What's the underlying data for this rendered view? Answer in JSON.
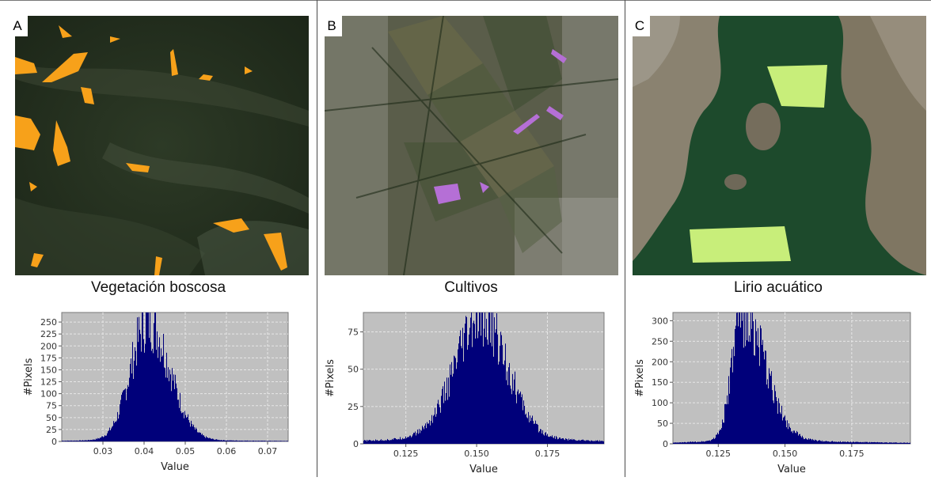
{
  "panels": [
    {
      "letter": "A",
      "caption": "Vegetación boscosa",
      "polygon_color": "#f7a11a"
    },
    {
      "letter": "B",
      "caption": "Cultivos",
      "polygon_color": "#b56fd6"
    },
    {
      "letter": "C",
      "caption": "Lirio acuático",
      "polygon_color": "#c8ee7a"
    }
  ],
  "chart_data": [
    {
      "type": "histogram",
      "xlabel": "Value",
      "ylabel": "#Pixels",
      "xlim": [
        0.02,
        0.075
      ],
      "ylim": [
        0,
        270
      ],
      "xticks": [
        0.03,
        0.04,
        0.05,
        0.06,
        0.07
      ],
      "xtick_labels": [
        "0.03",
        "0.04",
        "0.05",
        "0.06",
        "0.07"
      ],
      "yticks": [
        0,
        25,
        50,
        75,
        100,
        125,
        150,
        175,
        200,
        225,
        250
      ],
      "ytick_labels": [
        "0",
        "25",
        "50",
        "75",
        "100",
        "125",
        "150",
        "175",
        "200",
        "225",
        "250"
      ],
      "distribution": {
        "peak_x": 0.041,
        "peak_y": 255,
        "left_width": 0.0042,
        "right_width": 0.0052,
        "tail_weight": 0.02
      },
      "bar_color": "#00007a",
      "background": "#c0c0c0",
      "grid": true
    },
    {
      "type": "histogram",
      "xlabel": "Value",
      "ylabel": "#Pixels",
      "xlim": [
        0.11,
        0.195
      ],
      "ylim": [
        0,
        88
      ],
      "xticks": [
        0.125,
        0.15,
        0.175
      ],
      "xtick_labels": [
        "0.125",
        "0.150",
        "0.175"
      ],
      "yticks": [
        0,
        25,
        50,
        75
      ],
      "ytick_labels": [
        "0",
        "25",
        "50",
        "75"
      ],
      "distribution": {
        "peak_x": 0.152,
        "peak_y": 80,
        "left_width": 0.0095,
        "right_width": 0.009,
        "tail_weight": 0.08
      },
      "bar_color": "#00007a",
      "background": "#c0c0c0",
      "grid": true
    },
    {
      "type": "histogram",
      "xlabel": "Value",
      "ylabel": "#Pixels",
      "xlim": [
        0.108,
        0.197
      ],
      "ylim": [
        0,
        320
      ],
      "xticks": [
        0.125,
        0.15,
        0.175
      ],
      "xtick_labels": [
        "0.125",
        "0.150",
        "0.175"
      ],
      "yticks": [
        0,
        50,
        100,
        150,
        200,
        250,
        300
      ],
      "ytick_labels": [
        "0",
        "50",
        "100",
        "150",
        "200",
        "250",
        "300"
      ],
      "distribution": {
        "peak_x": 0.134,
        "peak_y": 310,
        "left_width": 0.0038,
        "right_width": 0.0085,
        "tail_weight": 0.05
      },
      "bar_color": "#00007a",
      "background": "#c0c0c0",
      "grid": true
    }
  ]
}
